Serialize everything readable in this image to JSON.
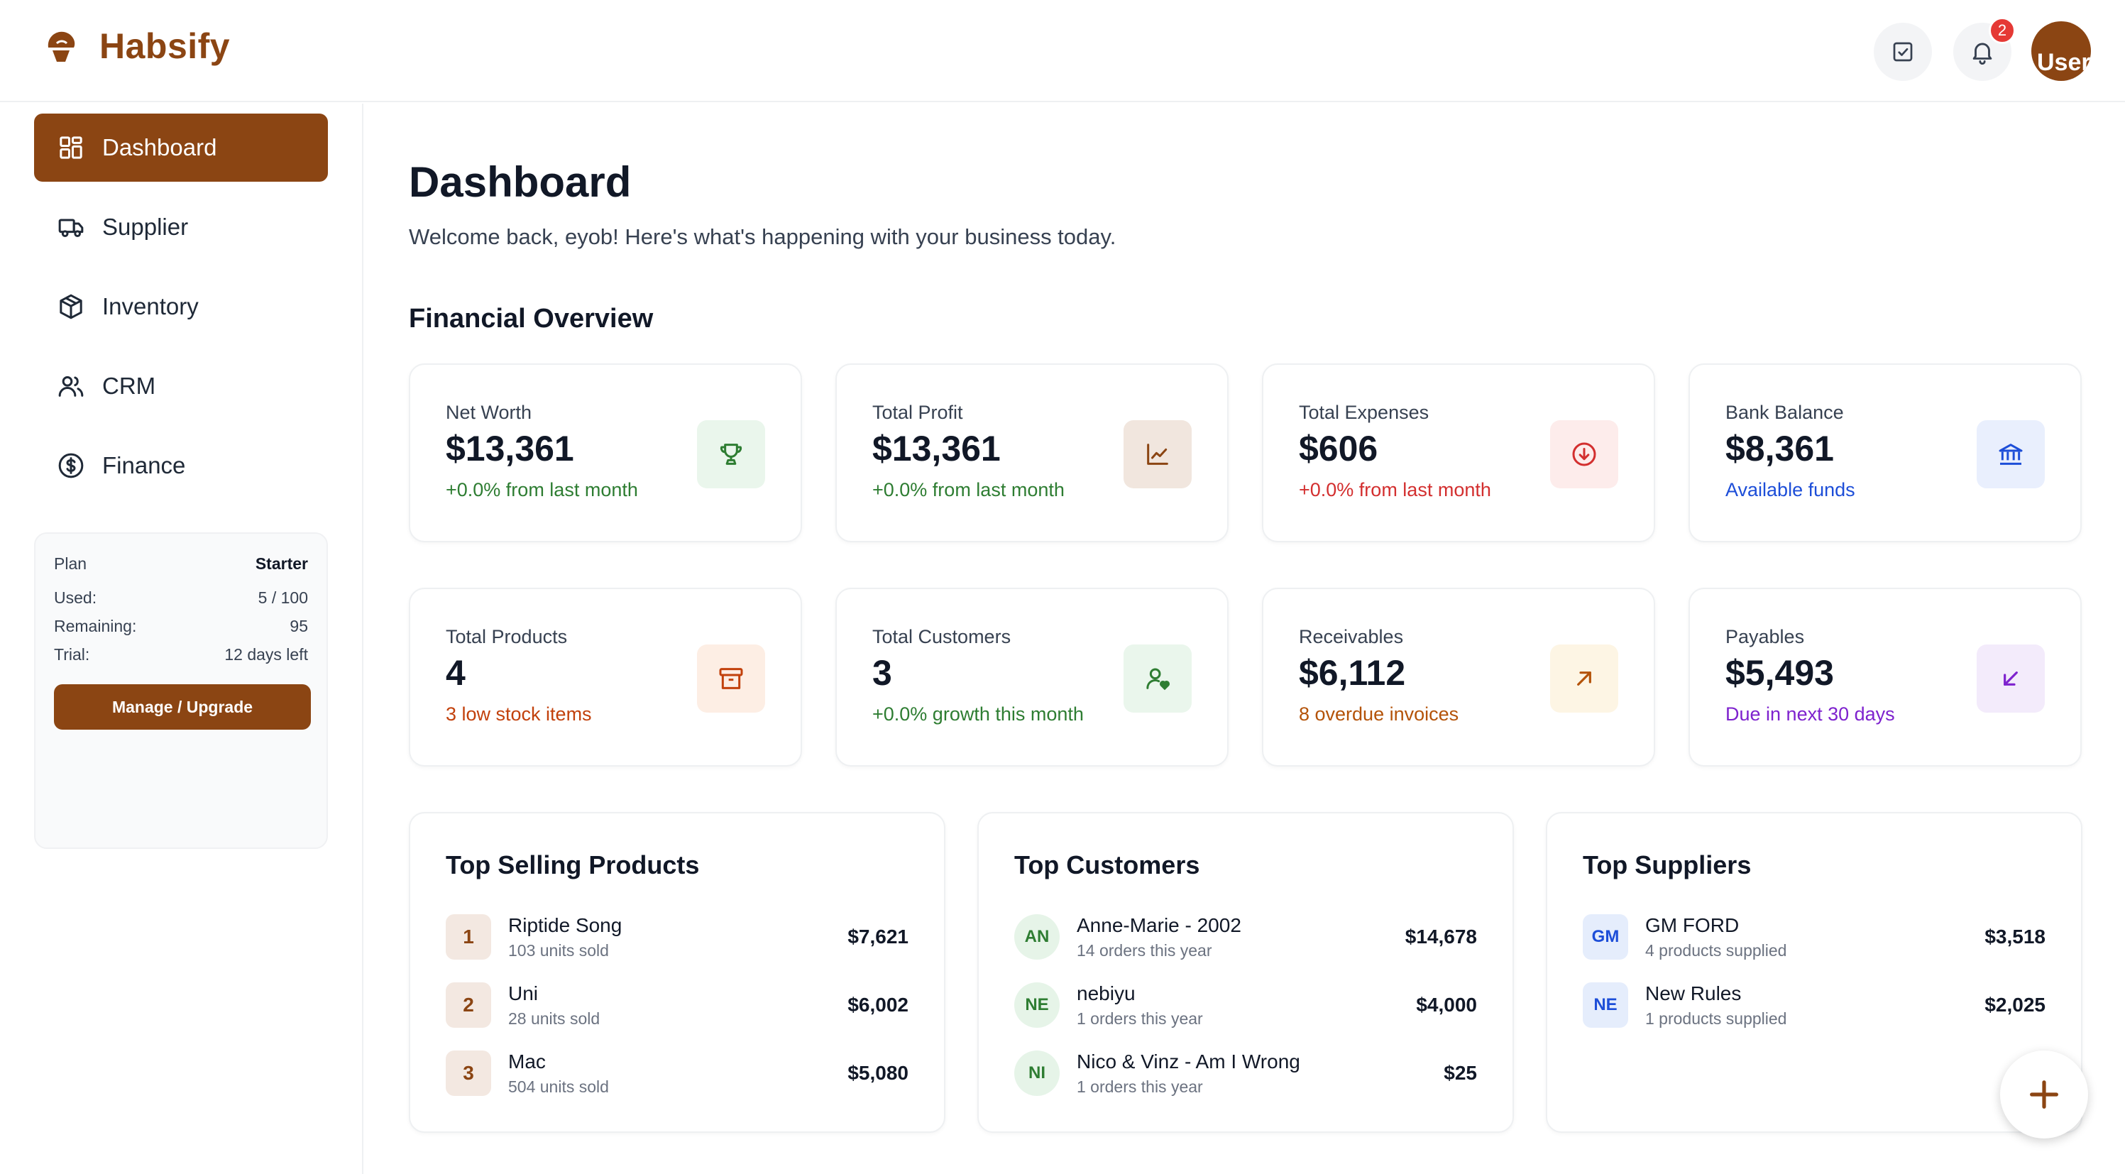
{
  "brand": {
    "name": "Habsify"
  },
  "header": {
    "notification_count": "2",
    "avatar_text": "User"
  },
  "colors": {
    "brand": "#8b4513",
    "green": "#2e7d32",
    "red": "#d32f2f",
    "blue": "#1d4ed8",
    "orange": "#c2410c",
    "amber": "#b45309",
    "purple": "#7e22ce"
  },
  "sidebar": {
    "items": [
      {
        "label": "Dashboard",
        "icon": "grid-icon",
        "active": true
      },
      {
        "label": "Supplier",
        "icon": "truck-icon"
      },
      {
        "label": "Inventory",
        "icon": "box-icon"
      },
      {
        "label": "CRM",
        "icon": "users-icon"
      },
      {
        "label": "Finance",
        "icon": "dollar-circle-icon"
      }
    ],
    "plan": {
      "plan_label": "Plan",
      "plan_value": "Starter",
      "used_label": "Used:",
      "used_value": "5 / 100",
      "remaining_label": "Remaining:",
      "remaining_value": "95",
      "trial_label": "Trial:",
      "trial_value": "12 days left",
      "button": "Manage / Upgrade"
    }
  },
  "main": {
    "title": "Dashboard",
    "subtitle": "Welcome back, eyob! Here's what's happening with your business today.",
    "section_title": "Financial Overview",
    "stats": [
      {
        "label": "Net Worth",
        "value": "$13,361",
        "sub": "+0.0% from last month",
        "icon": "trophy-icon"
      },
      {
        "label": "Total Profit",
        "value": "$13,361",
        "sub": "+0.0% from last month",
        "icon": "line-chart-icon"
      },
      {
        "label": "Total Expenses",
        "value": "$606",
        "sub": "+0.0% from last month",
        "icon": "arrow-down-circle-icon"
      },
      {
        "label": "Bank Balance",
        "value": "$8,361",
        "sub": "Available funds",
        "icon": "bank-icon"
      },
      {
        "label": "Total Products",
        "value": "4",
        "sub": "3 low stock items",
        "icon": "archive-icon"
      },
      {
        "label": "Total Customers",
        "value": "3",
        "sub": "+0.0% growth this month",
        "icon": "user-heart-icon"
      },
      {
        "label": "Receivables",
        "value": "$6,112",
        "sub": "8 overdue invoices",
        "icon": "arrow-up-right-icon"
      },
      {
        "label": "Payables",
        "value": "$5,493",
        "sub": "Due in next 30 days",
        "icon": "arrow-down-left-icon"
      }
    ],
    "top_products": {
      "title": "Top Selling Products",
      "rows": [
        {
          "rank": "1",
          "name": "Riptide Song",
          "meta": "103 units sold",
          "amount": "$7,621"
        },
        {
          "rank": "2",
          "name": "Uni",
          "meta": "28 units sold",
          "amount": "$6,002"
        },
        {
          "rank": "3",
          "name": "Mac",
          "meta": "504 units sold",
          "amount": "$5,080"
        }
      ]
    },
    "top_customers": {
      "title": "Top Customers",
      "rows": [
        {
          "initials": "AN",
          "name": "Anne-Marie - 2002",
          "meta": "14 orders this year",
          "amount": "$14,678"
        },
        {
          "initials": "NE",
          "name": "nebiyu",
          "meta": "1 orders this year",
          "amount": "$4,000"
        },
        {
          "initials": "NI",
          "name": "Nico & Vinz - Am I Wrong",
          "meta": "1 orders this year",
          "amount": "$25"
        }
      ]
    },
    "top_suppliers": {
      "title": "Top Suppliers",
      "rows": [
        {
          "initials": "GM",
          "name": "GM FORD",
          "meta": "4 products supplied",
          "amount": "$3,518"
        },
        {
          "initials": "NE",
          "name": "New Rules",
          "meta": "1 products supplied",
          "amount": "$2,025"
        }
      ]
    }
  }
}
